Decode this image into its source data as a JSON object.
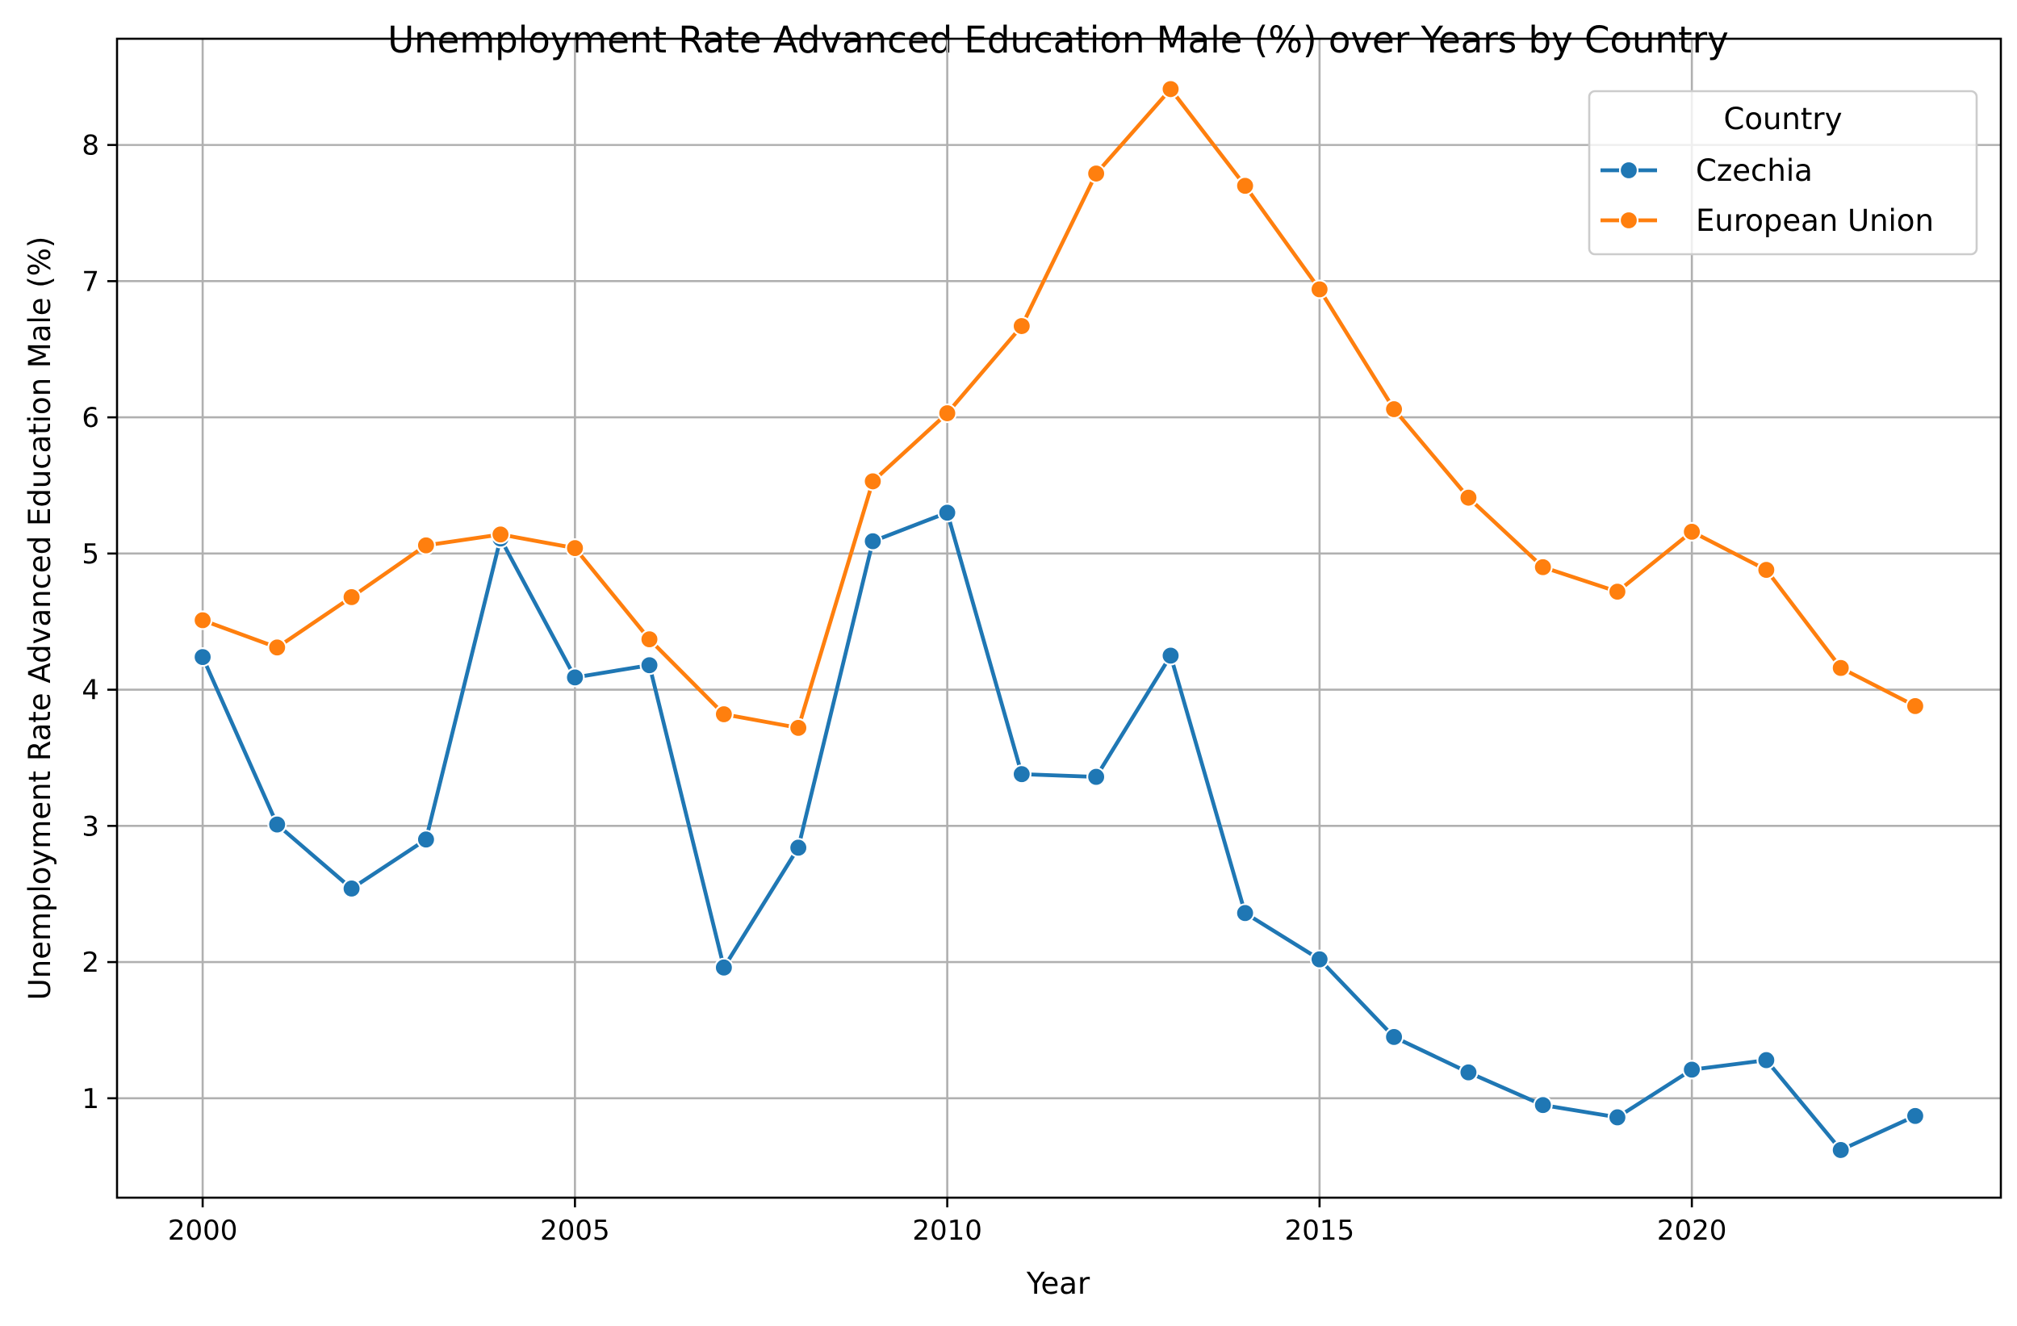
{
  "chart_data": {
    "type": "line",
    "title": "Unemployment Rate Advanced Education Male (%) over Years by Country",
    "xlabel": "Year",
    "ylabel": "Unemployment Rate Advanced Education Male (%)",
    "xlim": [
      1998.85,
      2024.15
    ],
    "ylim": [
      0.27,
      8.78
    ],
    "xticks": [
      2000,
      2005,
      2010,
      2015,
      2020
    ],
    "yticks": [
      1,
      2,
      3,
      4,
      5,
      6,
      7,
      8
    ],
    "grid": true,
    "legend": {
      "title": "Country",
      "placement": "top-right"
    },
    "x": [
      2000,
      2001,
      2002,
      2003,
      2004,
      2005,
      2006,
      2007,
      2008,
      2009,
      2010,
      2011,
      2012,
      2013,
      2014,
      2015,
      2016,
      2017,
      2018,
      2019,
      2020,
      2021,
      2022,
      2023
    ],
    "series": [
      {
        "name": "Czechia",
        "color": "#1f77b4",
        "values": [
          4.24,
          3.01,
          2.54,
          2.9,
          5.11,
          4.09,
          4.18,
          1.96,
          2.84,
          5.09,
          5.3,
          3.38,
          3.36,
          4.25,
          2.36,
          2.02,
          1.45,
          1.19,
          0.95,
          0.86,
          1.21,
          1.28,
          0.62,
          0.87
        ]
      },
      {
        "name": "European Union",
        "color": "#ff7f0e",
        "values": [
          4.51,
          4.31,
          4.68,
          5.06,
          5.14,
          5.04,
          4.37,
          3.82,
          3.72,
          5.53,
          6.03,
          6.67,
          7.79,
          8.41,
          7.7,
          6.94,
          6.06,
          5.41,
          4.9,
          4.72,
          5.16,
          4.88,
          4.16,
          3.88
        ]
      }
    ]
  }
}
